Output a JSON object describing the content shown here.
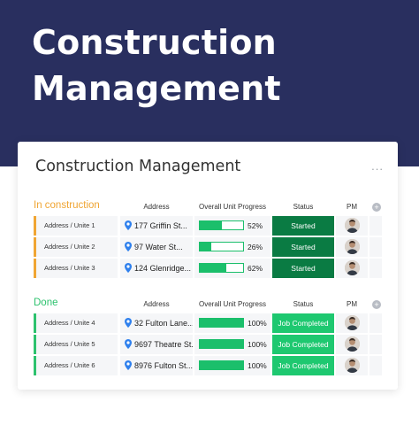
{
  "hero": {
    "title": "Construction Management"
  },
  "board": {
    "title": "Construction Management",
    "menu_label": "...",
    "add_column_label": "+",
    "columns": {
      "address": "Address",
      "progress": "Overall Unit Progress",
      "status": "Status",
      "pm": "PM"
    },
    "colors": {
      "in_construction": "#f0a533",
      "done": "#2dc26e",
      "started": "#0a7b43",
      "completed": "#1ec870",
      "progress_bar": "#1bbf6b"
    },
    "groups": [
      {
        "name": "In construction",
        "rows": [
          {
            "unit": "Address / Unite 1",
            "address": "177 Griffin St...",
            "progress": 52,
            "progress_label": "52%",
            "status": "Started",
            "pm_icon": "person-avatar-icon"
          },
          {
            "unit": "Address / Unite 2",
            "address": "97  Water St...",
            "progress": 26,
            "progress_label": "26%",
            "status": "Started",
            "pm_icon": "person-avatar-icon"
          },
          {
            "unit": "Address / Unite 3",
            "address": "124 Glenridge...",
            "progress": 62,
            "progress_label": "62%",
            "status": "Started",
            "pm_icon": "person-avatar-icon"
          }
        ]
      },
      {
        "name": "Done",
        "rows": [
          {
            "unit": "Address / Unite 4",
            "address": "32 Fulton Lane...",
            "progress": 100,
            "progress_label": "100%",
            "status": "Job Completed",
            "pm_icon": "person-avatar-icon"
          },
          {
            "unit": "Address / Unite 5",
            "address": "9697 Theatre St...",
            "progress": 100,
            "progress_label": "100%",
            "status": "Job Completed",
            "pm_icon": "person-avatar-icon"
          },
          {
            "unit": "Address / Unite 6",
            "address": "8976 Fulton St...",
            "progress": 100,
            "progress_label": "100%",
            "status": "Job Completed",
            "pm_icon": "person-avatar-icon"
          }
        ]
      }
    ]
  }
}
